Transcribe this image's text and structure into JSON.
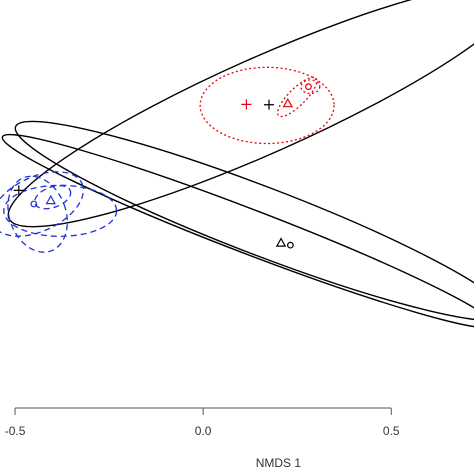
{
  "chart_data": {
    "type": "scatter",
    "xlabel": "NMDS 1",
    "ylabel": "",
    "xlim": [
      -0.54,
      0.72
    ],
    "ylim": [
      -0.6,
      0.6
    ],
    "x_ticks": [
      -0.5,
      0.0,
      0.5
    ],
    "x_tick_labels": [
      "-0.5",
      "0.0",
      "0.5"
    ],
    "grid": false,
    "series": [
      {
        "color": "#000000",
        "line_style": "solid",
        "points": [
          {
            "marker": "plus",
            "x": 0.175,
            "y": 0.292
          },
          {
            "marker": "plus",
            "x": -0.49,
            "y": 0.04
          },
          {
            "marker": "triangle",
            "x": 0.207,
            "y": -0.115
          },
          {
            "marker": "circle",
            "x": 0.232,
            "y": -0.121
          }
        ],
        "ellipses": [
          {
            "cx": 0.16,
            "cy": 0.29,
            "rx": 0.74,
            "ry": 0.14,
            "angle_deg": 24
          },
          {
            "cx": 0.155,
            "cy": -0.05,
            "rx": 0.7,
            "ry": 0.1,
            "angle_deg": -21
          },
          {
            "cx": 0.12,
            "cy": -0.08,
            "rx": 0.7,
            "ry": 0.065,
            "angle_deg": -21
          }
        ]
      },
      {
        "color": "#e8000b",
        "line_style": "dotted",
        "points": [
          {
            "marker": "plus",
            "x": 0.115,
            "y": 0.293
          },
          {
            "marker": "triangle",
            "x": 0.225,
            "y": 0.295
          },
          {
            "marker": "circle",
            "x": 0.28,
            "y": 0.345
          }
        ],
        "ellipses": [
          {
            "cx": 0.17,
            "cy": 0.29,
            "rx": 0.178,
            "ry": 0.112,
            "angle_deg": 0
          },
          {
            "cx": 0.25,
            "cy": 0.315,
            "rx": 0.07,
            "ry": 0.025,
            "angle_deg": 45
          },
          {
            "cx": 0.285,
            "cy": 0.345,
            "rx": 0.025,
            "ry": 0.02,
            "angle_deg": 0
          }
        ]
      },
      {
        "color": "#1f33d6",
        "line_style": "dashed",
        "points": [
          {
            "marker": "circle",
            "x": -0.45,
            "y": 0.0
          },
          {
            "marker": "triangle",
            "x": -0.405,
            "y": 0.01
          }
        ],
        "ellipses": [
          {
            "cx": -0.44,
            "cy": 0.0,
            "rx": 0.13,
            "ry": 0.08,
            "angle_deg": 25
          },
          {
            "cx": -0.44,
            "cy": -0.03,
            "rx": 0.075,
            "ry": 0.115,
            "angle_deg": 20
          },
          {
            "cx": -0.38,
            "cy": -0.02,
            "rx": 0.15,
            "ry": 0.075,
            "angle_deg": 0
          },
          {
            "cx": -0.4,
            "cy": 0.02,
            "rx": 0.05,
            "ry": 0.03,
            "angle_deg": 20
          }
        ]
      }
    ]
  }
}
